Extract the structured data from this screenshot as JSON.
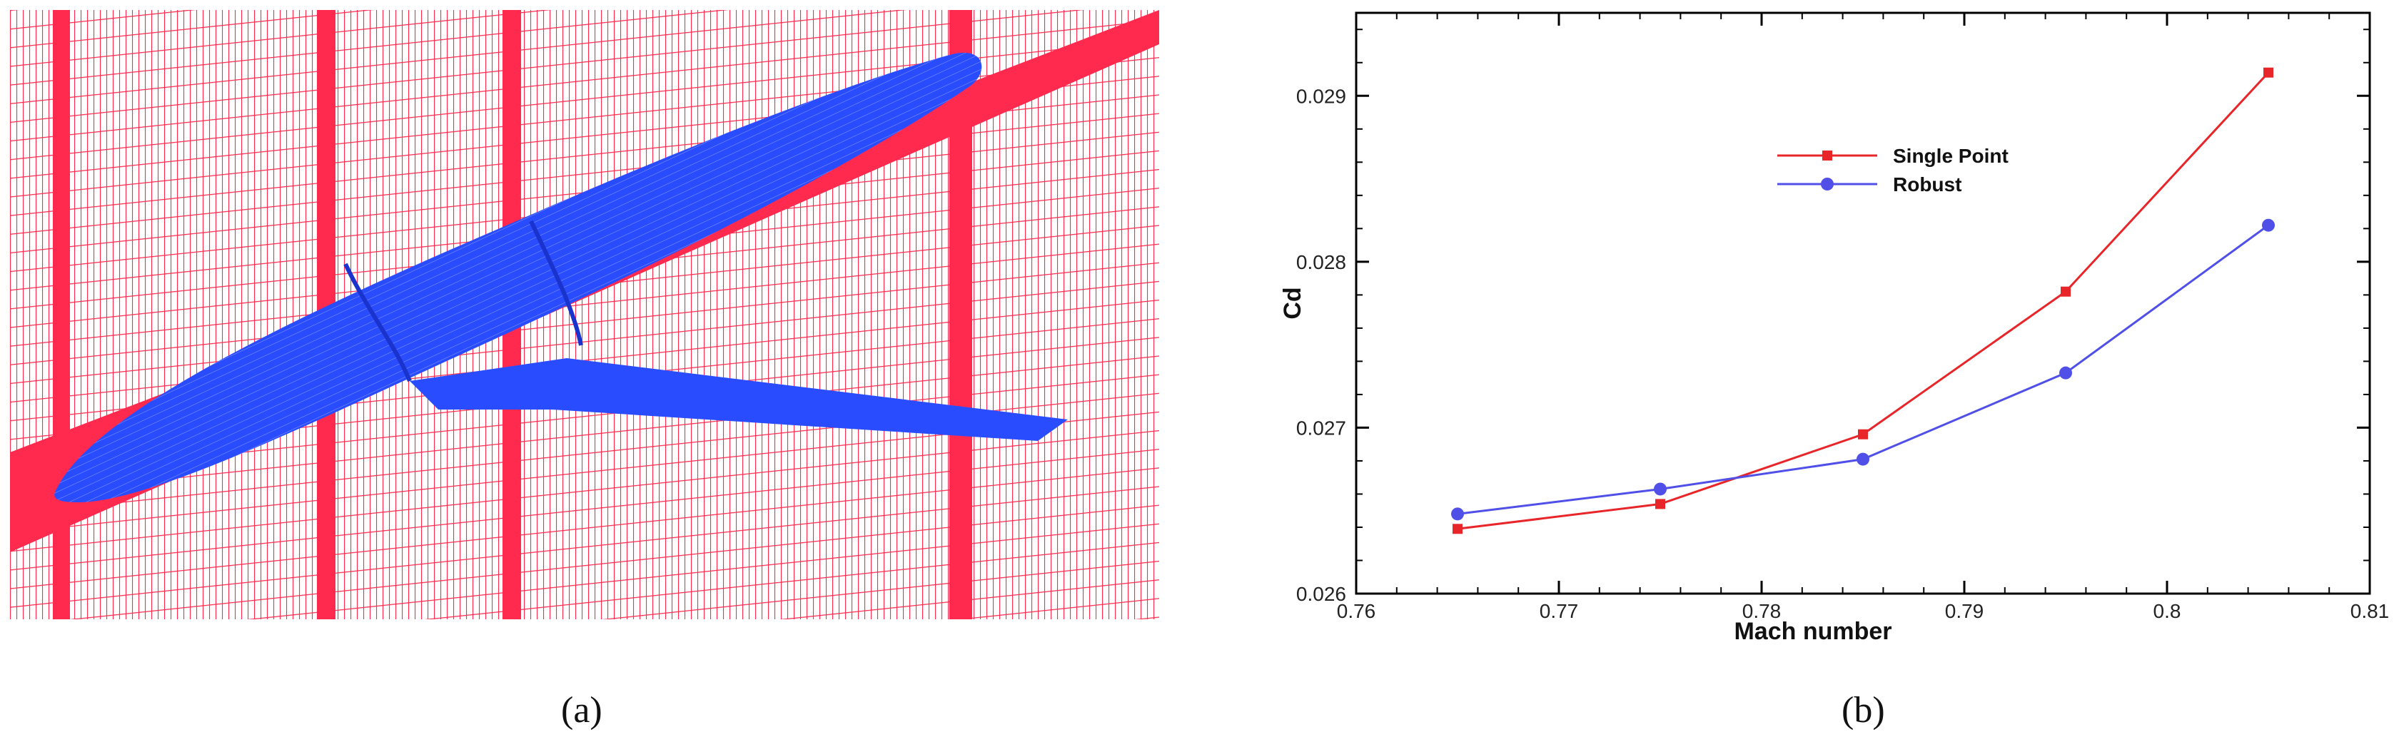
{
  "panels": [
    {
      "label": "(a)",
      "image": {
        "kind": "aircraft surface mesh inside CFD grid",
        "colors": {
          "grid": "#ff2a4e",
          "aircraft": "#2a4cff",
          "background": "#ffffff"
        }
      }
    },
    {
      "label": "(b)"
    }
  ],
  "chart_data": {
    "type": "line",
    "title": "",
    "xlabel": "Mach number",
    "ylabel": "Cd",
    "xlim": [
      0.76,
      0.81
    ],
    "ylim": [
      0.026,
      0.0295
    ],
    "x_ticks": [
      0.76,
      0.77,
      0.78,
      0.79,
      0.8,
      0.81
    ],
    "x_tick_labels": [
      "0.76",
      "0.77",
      "0.78",
      "0.79",
      "0.8",
      "0.81"
    ],
    "y_ticks": [
      0.026,
      0.027,
      0.028,
      0.029
    ],
    "y_tick_labels": [
      "0.026",
      "0.027",
      "0.028",
      "0.029"
    ],
    "grid": false,
    "legend_position": "upper-center",
    "x": [
      0.765,
      0.775,
      0.785,
      0.795,
      0.805
    ],
    "series": [
      {
        "name": "Single Point",
        "color": "#e8262a",
        "marker": "square",
        "values": [
          0.02639,
          0.02654,
          0.02696,
          0.02782,
          0.02914
        ]
      },
      {
        "name": "Robust",
        "color": "#5050e8",
        "marker": "circle",
        "values": [
          0.02648,
          0.02663,
          0.02681,
          0.02733,
          0.02822
        ]
      }
    ]
  }
}
